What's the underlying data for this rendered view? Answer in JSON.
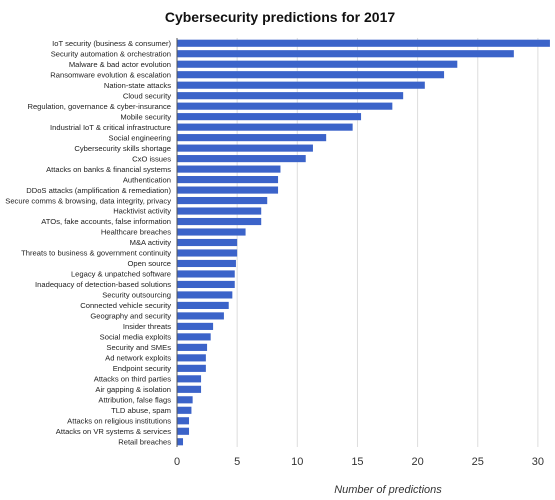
{
  "chart_data": {
    "type": "bar",
    "orientation": "horizontal",
    "title": "Cybersecurity predictions for 2017",
    "xlabel": "Number of predictions",
    "ylabel": "",
    "xlim": [
      0,
      31
    ],
    "xticks": [
      0,
      5,
      10,
      15,
      20,
      25,
      30
    ],
    "grid": "vertical",
    "bar_color": "#3b63c9",
    "categories": [
      "IoT security (business & consumer)",
      "Security automation & orchestration",
      "Malware & bad actor evolution",
      "Ransomware evolution & escalation",
      "Nation-state attacks",
      "Cloud security",
      "Regulation, governance & cyber-insurance",
      "Mobile security",
      "Industrial IoT & critical infrastructure",
      "Social engineering",
      "Cybersecurity skills shortage",
      "CxO issues",
      "Attacks on banks & financial systems",
      "Authentication",
      "DDoS attacks (amplification & remediation)",
      "Secure comms & browsing, data integrity, privacy",
      "Hacktivist activity",
      "ATOs, fake accounts, false information",
      "Healthcare breaches",
      "M&A activity",
      "Threats to business & government continuity",
      "Open source",
      "Legacy & unpatched software",
      "Inadequacy of detection-based solutions",
      "Security outsourcing",
      "Connected vehicle security",
      "Geography and security",
      "Insider threats",
      "Social media exploits",
      "Security and SMEs",
      "Ad network exploits",
      "Endpoint security",
      "Attacks on third parties",
      "Air gapping & isolation",
      "Attribution, false flags",
      "TLD abuse, spam",
      "Attacks on religious institutions",
      "Attacks on VR systems & services",
      "Retail breaches"
    ],
    "values": [
      31,
      28,
      23.3,
      22.2,
      20.6,
      18.8,
      17.9,
      15.3,
      14.6,
      12.4,
      11.3,
      10.7,
      8.6,
      8.4,
      8.4,
      7.5,
      7.0,
      7.0,
      5.7,
      5.0,
      5.0,
      4.9,
      4.8,
      4.8,
      4.6,
      4.3,
      3.9,
      3.0,
      2.8,
      2.5,
      2.4,
      2.4,
      2.0,
      2.0,
      1.3,
      1.2,
      1.0,
      1.0,
      0.5
    ]
  }
}
